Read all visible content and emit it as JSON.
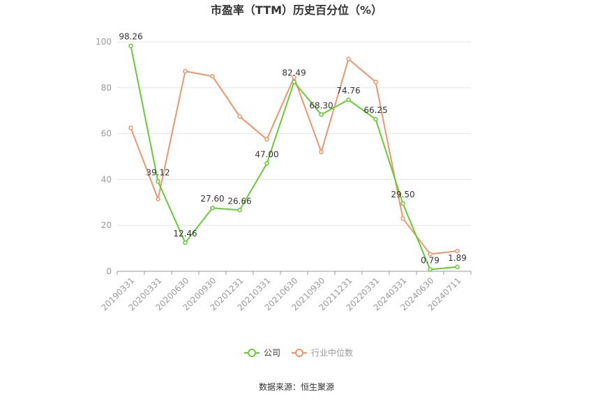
{
  "chart_data": {
    "type": "line",
    "title": "市盈率（TTM）历史百分位（%）",
    "categories": [
      "20190331",
      "20200331",
      "20200630",
      "20200930",
      "20201231",
      "20210331",
      "20210630",
      "20210930",
      "20211231",
      "20220331",
      "20240331",
      "20240630",
      "20240711"
    ],
    "series": [
      {
        "name": "公司",
        "color": "#66cc33",
        "values": [
          98.26,
          39.12,
          12.46,
          27.6,
          26.66,
          47.0,
          82.49,
          68.3,
          74.76,
          66.25,
          29.5,
          0.79,
          1.89
        ],
        "labels": [
          "98.26",
          "39.12",
          "12.46",
          "27.60",
          "26.66",
          "47.00",
          "82.49",
          "68.30",
          "74.76",
          "66.25",
          "29.50",
          "0.79",
          "1.89"
        ]
      },
      {
        "name": "行业中位数",
        "color": "#f0956a",
        "values": [
          62.5,
          31.5,
          87.2,
          85.0,
          67.5,
          57.5,
          84.5,
          52.0,
          92.5,
          82.5,
          23.0,
          7.5,
          8.8
        ]
      }
    ],
    "yticks": [
      0,
      20,
      40,
      60,
      80,
      100
    ],
    "ylim": [
      0,
      100
    ],
    "grid": true,
    "legend_position": "bottom"
  },
  "footer": {
    "source": "数据来源：恒生聚源"
  }
}
